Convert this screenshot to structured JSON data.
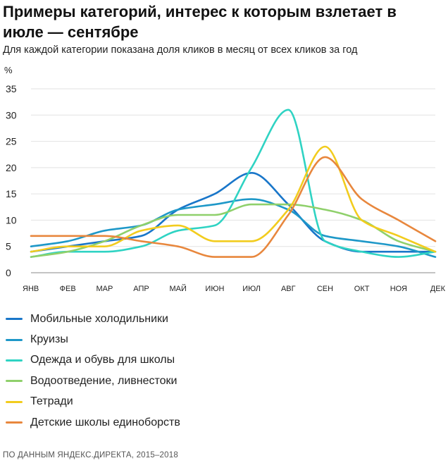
{
  "chart_data": {
    "type": "line",
    "title": "Примеры категорий, интерес к которым взлетает в июле — сентябре",
    "subtitle": "Для каждой категории показана доля кликов в месяц от всех кликов за год",
    "ylabel": "%",
    "ylim": [
      0,
      35
    ],
    "yticks": [
      0,
      5,
      10,
      15,
      20,
      25,
      30,
      35
    ],
    "grid": "horizontal",
    "legend_position": "bottom",
    "categories": [
      "ЯНВ",
      "ФЕВ",
      "МАР",
      "АПР",
      "МАЙ",
      "ИЮН",
      "ИЮЛ",
      "АВГ",
      "СЕН",
      "ОКТ",
      "НОЯ",
      "ДЕК"
    ],
    "series": [
      {
        "name": "Мобильные холодильники",
        "color": "#1976c9",
        "values": [
          4,
          5,
          6,
          7,
          12,
          15,
          19,
          13,
          6,
          4,
          4,
          4
        ]
      },
      {
        "name": "Круизы",
        "color": "#1e98c8",
        "values": [
          5,
          6,
          8,
          9,
          12,
          13,
          14,
          12,
          7,
          6,
          5,
          3
        ]
      },
      {
        "name": "Одежда и обувь для школы",
        "color": "#2fd3c3",
        "values": [
          3,
          4,
          4,
          5,
          8,
          9,
          20,
          31,
          6,
          4,
          3,
          4
        ]
      },
      {
        "name": "Водоотведение, ливнестоки",
        "color": "#8fd06b",
        "values": [
          3,
          4,
          6,
          9,
          11,
          11,
          13,
          13,
          12,
          10,
          6,
          4
        ]
      },
      {
        "name": "Тетради",
        "color": "#f2cc1e",
        "values": [
          4,
          5,
          5,
          8,
          9,
          6,
          6,
          12,
          24,
          10,
          7,
          4
        ]
      },
      {
        "name": "Детские школы единоборств",
        "color": "#e8873d",
        "values": [
          7,
          7,
          7,
          6,
          5,
          3,
          3,
          11,
          22,
          14,
          10,
          6
        ]
      }
    ],
    "source": "ПО ДАННЫМ ЯНДЕКС.ДИРЕКТА, 2015–2018"
  }
}
